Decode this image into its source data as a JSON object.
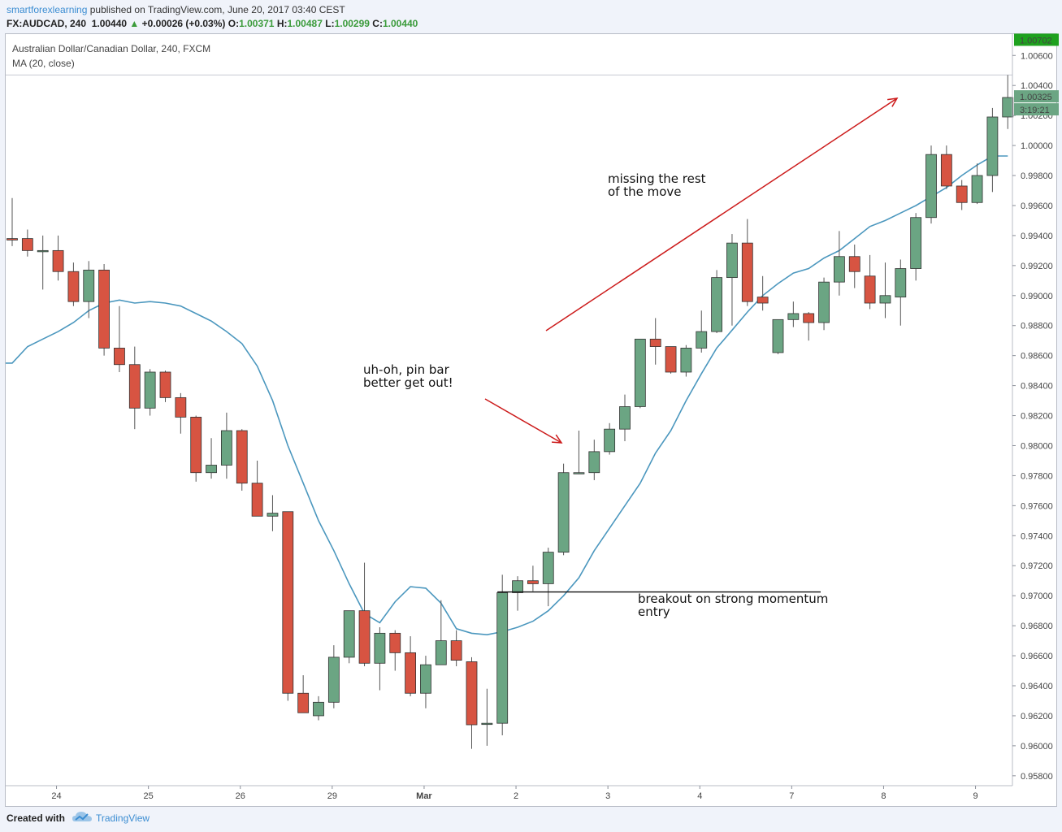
{
  "header": {
    "author": "smartforexlearning",
    "published": "published on TradingView.com, June 20, 2017 03:40 CEST",
    "symbol": "FX:AUDCAD, 240",
    "last": "1.00440",
    "change": "+0.00026 (+0.03%)",
    "o_label": "O:",
    "o_value": "1.00371",
    "h_label": "H:",
    "h_value": "1.00487",
    "l_label": "L:",
    "l_value": "1.00299",
    "c_label": "C:",
    "c_value": "1.00440"
  },
  "legend": {
    "instrument": "Australian Dollar/Canadian Dollar, 240, FXCM",
    "indicator": "MA (20, close)"
  },
  "footer": {
    "created_with": "Created with",
    "brand": "TradingView"
  },
  "colors": {
    "up": "#6ba583",
    "down": "#d75442",
    "ma": "#4b97be",
    "arrow": "#cc1b1b",
    "last_badge": "#1ea11e",
    "price_badge": "#6ba583"
  },
  "price_axis": {
    "badge_top": "1.00702",
    "badge_price": "1.00325",
    "badge_timer": "3:19:21"
  },
  "annotations": [
    {
      "id": "missing",
      "lines": [
        "missing the rest",
        "of the move"
      ]
    },
    {
      "id": "pinbar",
      "lines": [
        "uh-oh, pin bar",
        "better get out!"
      ]
    },
    {
      "id": "breakout",
      "lines": [
        "breakout on strong momentum",
        "entry"
      ]
    }
  ],
  "chart_data": {
    "type": "candlestick",
    "title": "Australian Dollar/Canadian Dollar, 240, FXCM",
    "ylim": [
      0.957,
      1.0075
    ],
    "y_ticks": [
      "1.00600",
      "1.00400",
      "1.00200",
      "1.00000",
      "0.99800",
      "0.99600",
      "0.99400",
      "0.99200",
      "0.99000",
      "0.98800",
      "0.98600",
      "0.98400",
      "0.98200",
      "0.98000",
      "0.97800",
      "0.97600",
      "0.97400",
      "0.97200",
      "0.97000",
      "0.96800",
      "0.96600",
      "0.96400",
      "0.96200",
      "0.96000",
      "0.95800"
    ],
    "x_ticks": [
      {
        "label": "24",
        "bar": 3
      },
      {
        "label": "25",
        "bar": 9
      },
      {
        "label": "26",
        "bar": 15
      },
      {
        "label": "29",
        "bar": 21
      },
      {
        "label": "Mar",
        "bar": 27
      },
      {
        "label": "2",
        "bar": 33
      },
      {
        "label": "3",
        "bar": 39
      },
      {
        "label": "4",
        "bar": 45
      },
      {
        "label": "7",
        "bar": 51
      },
      {
        "label": "8",
        "bar": 57
      },
      {
        "label": "9",
        "bar": 63
      }
    ],
    "candles": [
      [
        0.9938,
        0.9965,
        0.9933,
        0.9937
      ],
      [
        0.9938,
        0.9944,
        0.9926,
        0.993
      ],
      [
        0.993,
        0.994,
        0.9904,
        0.993
      ],
      [
        0.993,
        0.994,
        0.991,
        0.9916
      ],
      [
        0.9916,
        0.9922,
        0.9893,
        0.9896
      ],
      [
        0.9896,
        0.9923,
        0.9885,
        0.9917
      ],
      [
        0.9917,
        0.9921,
        0.986,
        0.9865
      ],
      [
        0.9865,
        0.9893,
        0.9849,
        0.9854
      ],
      [
        0.9854,
        0.9866,
        0.9811,
        0.9825
      ],
      [
        0.9825,
        0.9851,
        0.982,
        0.9849
      ],
      [
        0.9849,
        0.985,
        0.9829,
        0.9832
      ],
      [
        0.9832,
        0.9835,
        0.9808,
        0.9819
      ],
      [
        0.9819,
        0.982,
        0.9776,
        0.9782
      ],
      [
        0.9782,
        0.9805,
        0.9778,
        0.9787
      ],
      [
        0.9787,
        0.9822,
        0.9778,
        0.981
      ],
      [
        0.981,
        0.9811,
        0.977,
        0.9775
      ],
      [
        0.9775,
        0.979,
        0.9753,
        0.9753
      ],
      [
        0.9753,
        0.9767,
        0.9743,
        0.9755
      ],
      [
        0.9756,
        0.9756,
        0.963,
        0.9635
      ],
      [
        0.9635,
        0.9647,
        0.9622,
        0.9622
      ],
      [
        0.962,
        0.9633,
        0.9617,
        0.9629
      ],
      [
        0.9629,
        0.9667,
        0.9625,
        0.9659
      ],
      [
        0.9659,
        0.969,
        0.9655,
        0.969
      ],
      [
        0.969,
        0.9722,
        0.9653,
        0.9655
      ],
      [
        0.9655,
        0.9679,
        0.9637,
        0.9675
      ],
      [
        0.9675,
        0.9677,
        0.965,
        0.9662
      ],
      [
        0.9662,
        0.9673,
        0.9633,
        0.9635
      ],
      [
        0.9635,
        0.966,
        0.9625,
        0.9654
      ],
      [
        0.9654,
        0.9697,
        0.9655,
        0.967
      ],
      [
        0.967,
        0.9677,
        0.9653,
        0.9657
      ],
      [
        0.9656,
        0.9659,
        0.9598,
        0.9614
      ],
      [
        0.9615,
        0.9638,
        0.96,
        0.9615
      ],
      [
        0.9615,
        0.9714,
        0.9607,
        0.9702
      ],
      [
        0.9702,
        0.9713,
        0.969,
        0.971
      ],
      [
        0.971,
        0.972,
        0.9703,
        0.9708
      ],
      [
        0.9708,
        0.9732,
        0.9693,
        0.9729
      ],
      [
        0.9729,
        0.9788,
        0.9727,
        0.9782
      ],
      [
        0.9782,
        0.981,
        0.9781,
        0.9782
      ],
      [
        0.9782,
        0.9804,
        0.9777,
        0.9796
      ],
      [
        0.9796,
        0.9815,
        0.9794,
        0.9811
      ],
      [
        0.9811,
        0.9834,
        0.9803,
        0.9826
      ],
      [
        0.9826,
        0.9871,
        0.9825,
        0.9871
      ],
      [
        0.9871,
        0.9885,
        0.9854,
        0.9866
      ],
      [
        0.9866,
        0.9866,
        0.9848,
        0.9849
      ],
      [
        0.9849,
        0.9867,
        0.9846,
        0.9865
      ],
      [
        0.9865,
        0.989,
        0.9862,
        0.9876
      ],
      [
        0.9876,
        0.9917,
        0.9875,
        0.9912
      ],
      [
        0.9912,
        0.9941,
        0.988,
        0.9935
      ],
      [
        0.9935,
        0.9951,
        0.9893,
        0.9896
      ],
      [
        0.9899,
        0.9913,
        0.989,
        0.9895
      ],
      [
        0.9862,
        0.988,
        0.9861,
        0.9884
      ],
      [
        0.9884,
        0.9896,
        0.9879,
        0.9888
      ],
      [
        0.9888,
        0.9889,
        0.987,
        0.9882
      ],
      [
        0.9882,
        0.9912,
        0.9877,
        0.9909
      ],
      [
        0.9909,
        0.9943,
        0.99,
        0.9926
      ],
      [
        0.9926,
        0.9934,
        0.9905,
        0.9916
      ],
      [
        0.9913,
        0.9927,
        0.9891,
        0.9895
      ],
      [
        0.9895,
        0.9922,
        0.9885,
        0.99
      ],
      [
        0.9899,
        0.9924,
        0.988,
        0.9918
      ],
      [
        0.9918,
        0.9955,
        0.991,
        0.9952
      ],
      [
        0.9952,
        1.0,
        0.9948,
        0.9994
      ],
      [
        0.9994,
        1.0,
        0.9971,
        0.9973
      ],
      [
        0.9973,
        0.9977,
        0.9957,
        0.9962
      ],
      [
        0.9962,
        0.9988,
        0.9961,
        0.998
      ],
      [
        0.998,
        1.0025,
        0.9969,
        1.0019
      ],
      [
        1.0019,
        1.0047,
        1.0011,
        1.0032
      ]
    ],
    "ma": [
      [
        0,
        0.9855
      ],
      [
        1,
        0.9866
      ],
      [
        2,
        0.9871
      ],
      [
        3,
        0.9876
      ],
      [
        4,
        0.9882
      ],
      [
        5,
        0.989
      ],
      [
        6,
        0.9895
      ],
      [
        7,
        0.9897
      ],
      [
        8,
        0.9895
      ],
      [
        9,
        0.9896
      ],
      [
        10,
        0.9895
      ],
      [
        11,
        0.9893
      ],
      [
        12,
        0.9888
      ],
      [
        13,
        0.9883
      ],
      [
        14,
        0.9876
      ],
      [
        15,
        0.9868
      ],
      [
        16,
        0.9853
      ],
      [
        17,
        0.983
      ],
      [
        18,
        0.98
      ],
      [
        19,
        0.9775
      ],
      [
        20,
        0.975
      ],
      [
        21,
        0.973
      ],
      [
        22,
        0.9708
      ],
      [
        23,
        0.9688
      ],
      [
        24,
        0.9682
      ],
      [
        25,
        0.9696
      ],
      [
        26,
        0.9706
      ],
      [
        27,
        0.9705
      ],
      [
        28,
        0.9695
      ],
      [
        29,
        0.9678
      ],
      [
        30,
        0.9675
      ],
      [
        31,
        0.9674
      ],
      [
        32,
        0.9676
      ],
      [
        33,
        0.9679
      ],
      [
        34,
        0.9683
      ],
      [
        35,
        0.969
      ],
      [
        36,
        0.97
      ],
      [
        37,
        0.9712
      ],
      [
        38,
        0.973
      ],
      [
        39,
        0.9745
      ],
      [
        40,
        0.976
      ],
      [
        41,
        0.9775
      ],
      [
        42,
        0.9795
      ],
      [
        43,
        0.981
      ],
      [
        44,
        0.983
      ],
      [
        45,
        0.9848
      ],
      [
        46,
        0.9865
      ],
      [
        47,
        0.9877
      ],
      [
        48,
        0.9889
      ],
      [
        49,
        0.99
      ],
      [
        50,
        0.9908
      ],
      [
        51,
        0.9915
      ],
      [
        52,
        0.9918
      ],
      [
        53,
        0.9925
      ],
      [
        54,
        0.993
      ],
      [
        55,
        0.9938
      ],
      [
        56,
        0.9946
      ],
      [
        57,
        0.995
      ],
      [
        58,
        0.9955
      ],
      [
        59,
        0.996
      ],
      [
        60,
        0.9966
      ],
      [
        61,
        0.9972
      ],
      [
        62,
        0.998
      ],
      [
        63,
        0.9987
      ],
      [
        64,
        0.9993
      ],
      [
        65,
        0.9993
      ]
    ],
    "horizontal_line": {
      "price": 0.97025,
      "from_bar": 32,
      "to_bar": 53
    }
  }
}
